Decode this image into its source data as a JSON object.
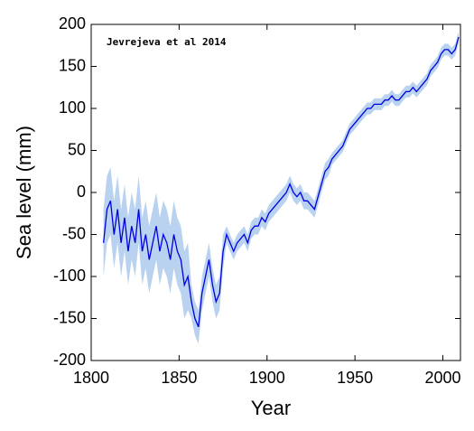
{
  "chart_data": {
    "type": "line",
    "annotation": "Jevrejeva et al 2014",
    "xlabel": "Year",
    "ylabel": "Sea level (mm)",
    "x": [
      1807,
      1809,
      1811,
      1813,
      1815,
      1817,
      1819,
      1821,
      1823,
      1825,
      1827,
      1829,
      1831,
      1833,
      1835,
      1837,
      1839,
      1841,
      1843,
      1845,
      1847,
      1849,
      1851,
      1853,
      1855,
      1857,
      1859,
      1861,
      1863,
      1865,
      1867,
      1869,
      1871,
      1873,
      1875,
      1877,
      1879,
      1881,
      1883,
      1885,
      1887,
      1889,
      1891,
      1893,
      1895,
      1897,
      1899,
      1901,
      1903,
      1905,
      1907,
      1909,
      1911,
      1913,
      1915,
      1917,
      1919,
      1921,
      1923,
      1925,
      1927,
      1929,
      1931,
      1933,
      1935,
      1937,
      1939,
      1941,
      1943,
      1945,
      1947,
      1949,
      1951,
      1953,
      1955,
      1957,
      1959,
      1961,
      1963,
      1965,
      1967,
      1969,
      1971,
      1973,
      1975,
      1977,
      1979,
      1981,
      1983,
      1985,
      1987,
      1989,
      1991,
      1993,
      1995,
      1997,
      1999,
      2001,
      2003,
      2005,
      2007,
      2009
    ],
    "values": [
      -60,
      -20,
      -10,
      -50,
      -20,
      -60,
      -30,
      -70,
      -40,
      -60,
      -20,
      -70,
      -50,
      -80,
      -60,
      -40,
      -70,
      -50,
      -60,
      -80,
      -50,
      -70,
      -80,
      -110,
      -100,
      -130,
      -150,
      -160,
      -120,
      -100,
      -80,
      -110,
      -130,
      -120,
      -70,
      -50,
      -60,
      -70,
      -60,
      -55,
      -50,
      -60,
      -45,
      -40,
      -40,
      -30,
      -35,
      -25,
      -20,
      -15,
      -10,
      -5,
      0,
      10,
      0,
      -5,
      0,
      -10,
      -10,
      -15,
      -20,
      -5,
      10,
      25,
      30,
      40,
      45,
      50,
      55,
      65,
      75,
      80,
      85,
      90,
      95,
      100,
      100,
      105,
      105,
      105,
      110,
      110,
      115,
      110,
      110,
      115,
      120,
      120,
      125,
      120,
      125,
      130,
      135,
      145,
      150,
      155,
      165,
      170,
      170,
      165,
      170,
      185
    ],
    "error": [
      40,
      40,
      40,
      40,
      40,
      40,
      40,
      40,
      40,
      40,
      40,
      40,
      40,
      40,
      40,
      40,
      40,
      40,
      40,
      40,
      40,
      40,
      40,
      40,
      40,
      20,
      20,
      20,
      20,
      20,
      20,
      20,
      20,
      20,
      20,
      10,
      10,
      10,
      10,
      10,
      10,
      10,
      10,
      10,
      10,
      10,
      10,
      10,
      10,
      10,
      10,
      10,
      10,
      10,
      10,
      10,
      10,
      10,
      10,
      10,
      10,
      10,
      10,
      10,
      10,
      7,
      7,
      7,
      7,
      7,
      7,
      7,
      7,
      7,
      7,
      7,
      7,
      7,
      7,
      7,
      7,
      7,
      7,
      7,
      7,
      7,
      7,
      7,
      7,
      7,
      7,
      7,
      7,
      7,
      7,
      7,
      7,
      7,
      7,
      7,
      7,
      7
    ],
    "color": "#0000e0",
    "band_color": "#b8d2f0",
    "xlim": [
      1800,
      2010
    ],
    "xticks": [
      1800,
      1850,
      1900,
      1950,
      2000
    ],
    "ylim": [
      -200,
      200
    ],
    "yticks": [
      -200,
      -150,
      -100,
      -50,
      0,
      50,
      100,
      150,
      200
    ],
    "grid": false
  }
}
